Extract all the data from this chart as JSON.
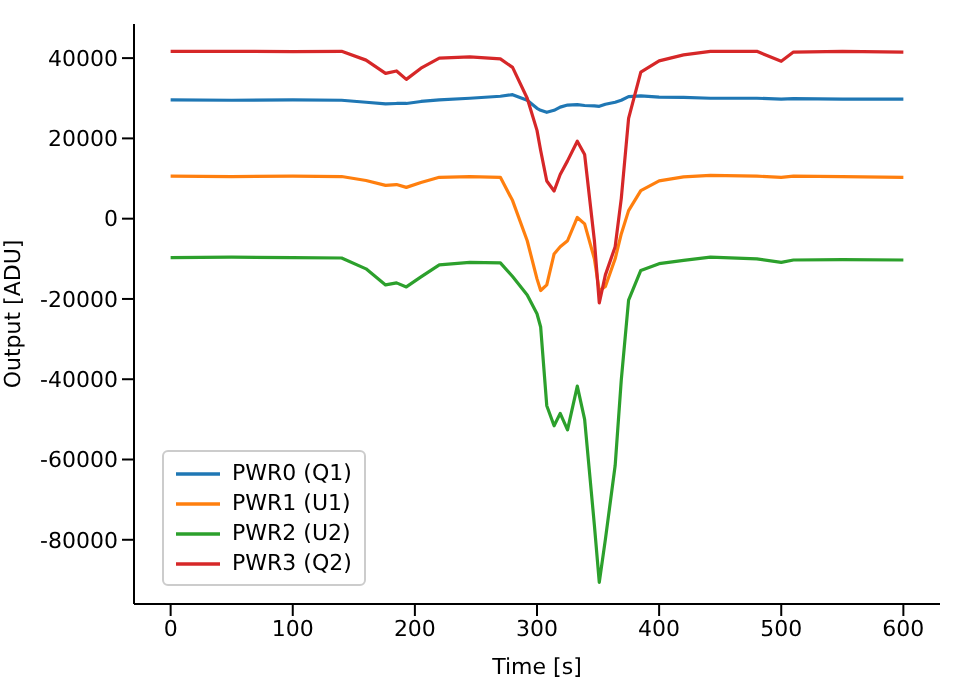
{
  "chart_data": {
    "type": "line",
    "xlabel": "Time [s]",
    "ylabel": "Output [ADU]",
    "x": [
      0,
      50,
      100,
      140,
      160,
      176,
      185,
      193,
      205,
      220,
      245,
      270,
      280,
      292,
      300,
      303,
      308,
      314,
      319,
      325,
      333,
      339,
      347,
      351,
      356,
      364,
      369,
      375,
      385,
      400,
      420,
      442,
      480,
      500,
      510,
      550,
      600
    ],
    "series": [
      {
        "name": "PWR0 (Q1)",
        "color": "#1f77b4",
        "values": [
          29600,
          29500,
          29600,
          29500,
          29000,
          28600,
          28700,
          28700,
          29200,
          29600,
          30000,
          30500,
          30900,
          29500,
          27500,
          27000,
          26500,
          27000,
          27800,
          28300,
          28400,
          28200,
          28100,
          28000,
          28500,
          29000,
          29500,
          30400,
          30600,
          30300,
          30200,
          30000,
          30000,
          29800,
          29900,
          29800,
          29800
        ]
      },
      {
        "name": "PWR1 (U1)",
        "color": "#ff7f0e",
        "values": [
          10600,
          10500,
          10600,
          10500,
          9500,
          8300,
          8500,
          7800,
          9000,
          10300,
          10500,
          10300,
          4500,
          -5500,
          -15000,
          -17900,
          -16500,
          -8800,
          -7000,
          -5500,
          300,
          -1300,
          -10000,
          -18000,
          -16900,
          -10000,
          -3800,
          2000,
          7000,
          9400,
          10400,
          10800,
          10600,
          10300,
          10600,
          10500,
          10300
        ]
      },
      {
        "name": "PWR2 (U2)",
        "color": "#2ca02c",
        "values": [
          -9700,
          -9600,
          -9700,
          -9800,
          -12500,
          -16500,
          -16000,
          -17000,
          -14500,
          -11500,
          -10900,
          -11000,
          -14400,
          -19000,
          -23700,
          -27000,
          -46600,
          -51600,
          -48500,
          -52600,
          -41700,
          -50000,
          -76400,
          -90600,
          -79900,
          -61500,
          -40200,
          -20300,
          -12900,
          -11200,
          -10400,
          -9600,
          -10000,
          -10900,
          -10300,
          -10200,
          -10300
        ]
      },
      {
        "name": "PWR3 (Q2)",
        "color": "#d62728",
        "values": [
          41700,
          41700,
          41600,
          41700,
          39500,
          36200,
          36800,
          34700,
          37500,
          40000,
          40300,
          39800,
          37700,
          30000,
          22000,
          17000,
          9400,
          6900,
          11000,
          14400,
          19300,
          16000,
          -5500,
          -21000,
          -14000,
          -7000,
          5000,
          25000,
          36500,
          39300,
          40800,
          41700,
          41700,
          39200,
          41500,
          41700,
          41500
        ]
      }
    ],
    "xlim": [
      -30,
      630
    ],
    "xticks": [
      0,
      100,
      200,
      300,
      400,
      500,
      600
    ],
    "ylim": [
      -96000,
      48500
    ],
    "yticks": [
      -80000,
      -60000,
      -40000,
      -20000,
      0,
      20000,
      40000
    ],
    "legend": "bottom left",
    "grid": false,
    "marker": "none",
    "line_style": "solid"
  }
}
